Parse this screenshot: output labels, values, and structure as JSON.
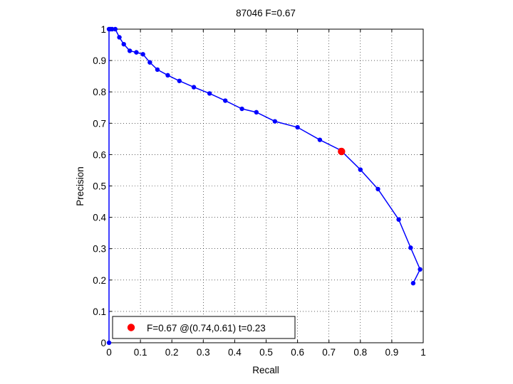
{
  "chart_data": {
    "type": "line",
    "title": "87046 F=0.67",
    "xlabel": "Recall",
    "ylabel": "Precision",
    "xlim": [
      0,
      1
    ],
    "ylim": [
      0,
      1
    ],
    "grid": true,
    "xticks": [
      0,
      0.1,
      0.2,
      0.3,
      0.4,
      0.5,
      0.6,
      0.7,
      0.8,
      0.9,
      1
    ],
    "yticks": [
      0,
      0.1,
      0.2,
      0.3,
      0.4,
      0.5,
      0.6,
      0.7,
      0.8,
      0.9,
      1
    ],
    "xtick_labels": [
      "0",
      "0.1",
      "0.2",
      "0.3",
      "0.4",
      "0.5",
      "0.6",
      "0.7",
      "0.8",
      "0.9",
      "1"
    ],
    "ytick_labels": [
      "0",
      "0.1",
      "0.2",
      "0.3",
      "0.4",
      "0.5",
      "0.6",
      "0.7",
      "0.8",
      "0.9",
      "1"
    ],
    "series": [
      {
        "color": "#0000ff",
        "points": [
          [
            0.0,
            0.0
          ],
          [
            0.0,
            1.0
          ],
          [
            0.005,
            1.0
          ],
          [
            0.01,
            1.0
          ],
          [
            0.02,
            1.0
          ],
          [
            0.033,
            0.974
          ],
          [
            0.047,
            0.952
          ],
          [
            0.066,
            0.931
          ],
          [
            0.087,
            0.926
          ],
          [
            0.108,
            0.92
          ],
          [
            0.13,
            0.894
          ],
          [
            0.154,
            0.871
          ],
          [
            0.187,
            0.853
          ],
          [
            0.224,
            0.835
          ],
          [
            0.27,
            0.815
          ],
          [
            0.32,
            0.795
          ],
          [
            0.37,
            0.772
          ],
          [
            0.423,
            0.746
          ],
          [
            0.469,
            0.735
          ],
          [
            0.528,
            0.706
          ],
          [
            0.6,
            0.687
          ],
          [
            0.671,
            0.647
          ],
          [
            0.737,
            0.614
          ],
          [
            0.8,
            0.552
          ],
          [
            0.856,
            0.49
          ],
          [
            0.922,
            0.393
          ],
          [
            0.96,
            0.303
          ],
          [
            0.99,
            0.234
          ],
          [
            0.968,
            0.19
          ]
        ]
      }
    ],
    "highlight": {
      "x": 0.74,
      "y": 0.61,
      "color": "#ff0000"
    },
    "legend": {
      "location": "bottom-left",
      "text": "F=0.67 @(0.74,0.61) t=0.23"
    }
  }
}
